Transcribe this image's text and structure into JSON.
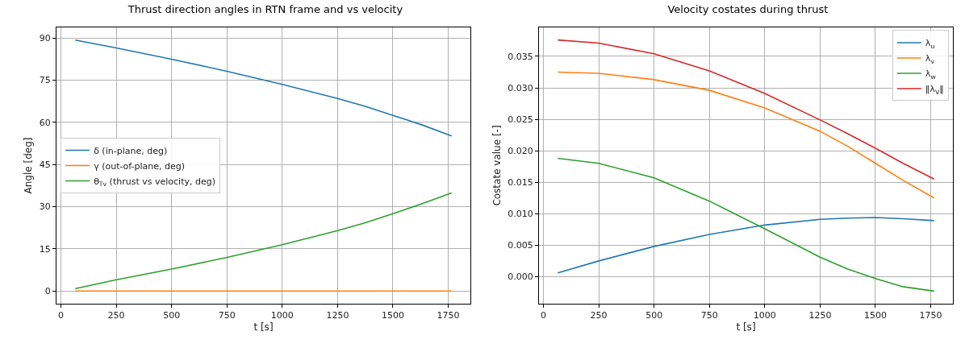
{
  "chart_data": [
    {
      "type": "line",
      "title": "Thrust direction angles in RTN frame and vs velocity",
      "xlabel": "t [s]",
      "ylabel": "Angle [deg]",
      "x": [
        65,
        250,
        500,
        750,
        1000,
        1250,
        1375,
        1500,
        1625,
        1765
      ],
      "series": [
        {
          "name": "δ (in-plane, deg)",
          "color": "#1f77b4",
          "values": [
            89.3,
            86.5,
            82.5,
            78.2,
            73.5,
            68.5,
            65.7,
            62.5,
            59.3,
            55.2
          ]
        },
        {
          "name": "γ (out-of-plane, deg)",
          "color": "#ff7f0e",
          "values": [
            0,
            0,
            0,
            0,
            0,
            0,
            0,
            0,
            0,
            0
          ]
        },
        {
          "name": "θ$_{Tv}$ (thrust vs velocity, deg)",
          "color": "#2ca02c",
          "values": [
            0.9,
            4,
            7.8,
            12,
            16.5,
            21.5,
            24.3,
            27.5,
            30.9,
            34.9
          ]
        }
      ],
      "xlim": [
        -20,
        1850
      ],
      "ylim": [
        -4.5,
        93.8
      ],
      "xticks": [
        0,
        250,
        500,
        750,
        1000,
        1250,
        1500,
        1750
      ],
      "yticks": [
        0,
        15,
        30,
        45,
        60,
        75,
        90
      ],
      "grid": true,
      "legend": "center left",
      "line_style": "solid",
      "marker": "none"
    },
    {
      "type": "line",
      "title": "Velocity costates during thrust",
      "xlabel": "t [s]",
      "ylabel": "Costate value [-]",
      "x": [
        65,
        250,
        500,
        750,
        1000,
        1250,
        1375,
        1500,
        1625,
        1765
      ],
      "series": [
        {
          "name": "λ$_{u}$",
          "color": "#1f77b4",
          "values": [
            0.0006,
            0.0025,
            0.0048,
            0.0067,
            0.0082,
            0.0091,
            0.0093,
            0.0094,
            0.0092,
            0.0089
          ]
        },
        {
          "name": "λ$_{v}$",
          "color": "#ff7f0e",
          "values": [
            0.0325,
            0.0323,
            0.0313,
            0.0296,
            0.0268,
            0.0231,
            0.0207,
            0.018,
            0.0153,
            0.0125
          ]
        },
        {
          "name": "λ$_{w}$",
          "color": "#2ca02c",
          "values": [
            0.0188,
            0.018,
            0.0157,
            0.012,
            0.0076,
            0.0031,
            0.0012,
            -0.0003,
            -0.0016,
            -0.0023
          ]
        },
        {
          "name": "‖λ$_{V}$‖",
          "color": "#d62728",
          "values": [
            0.0376,
            0.0371,
            0.0354,
            0.0327,
            0.0291,
            0.0249,
            0.0227,
            0.0204,
            0.018,
            0.0155
          ]
        }
      ],
      "xlim": [
        -20,
        1850
      ],
      "ylim": [
        -0.0043,
        0.0396
      ],
      "xticks": [
        0,
        250,
        500,
        750,
        1000,
        1250,
        1500,
        1750
      ],
      "yticks": [
        {
          "value": 0,
          "label": "0.000"
        },
        {
          "value": 0.005,
          "label": "0.005"
        },
        {
          "value": 0.01,
          "label": "0.010"
        },
        {
          "value": 0.015,
          "label": "0.015"
        },
        {
          "value": 0.02,
          "label": "0.020"
        },
        {
          "value": 0.025,
          "label": "0.025"
        },
        {
          "value": 0.03,
          "label": "0.030"
        },
        {
          "value": 0.035,
          "label": "0.035"
        }
      ],
      "grid": true,
      "legend": "top right",
      "line_style": "solid",
      "marker": "none"
    }
  ]
}
